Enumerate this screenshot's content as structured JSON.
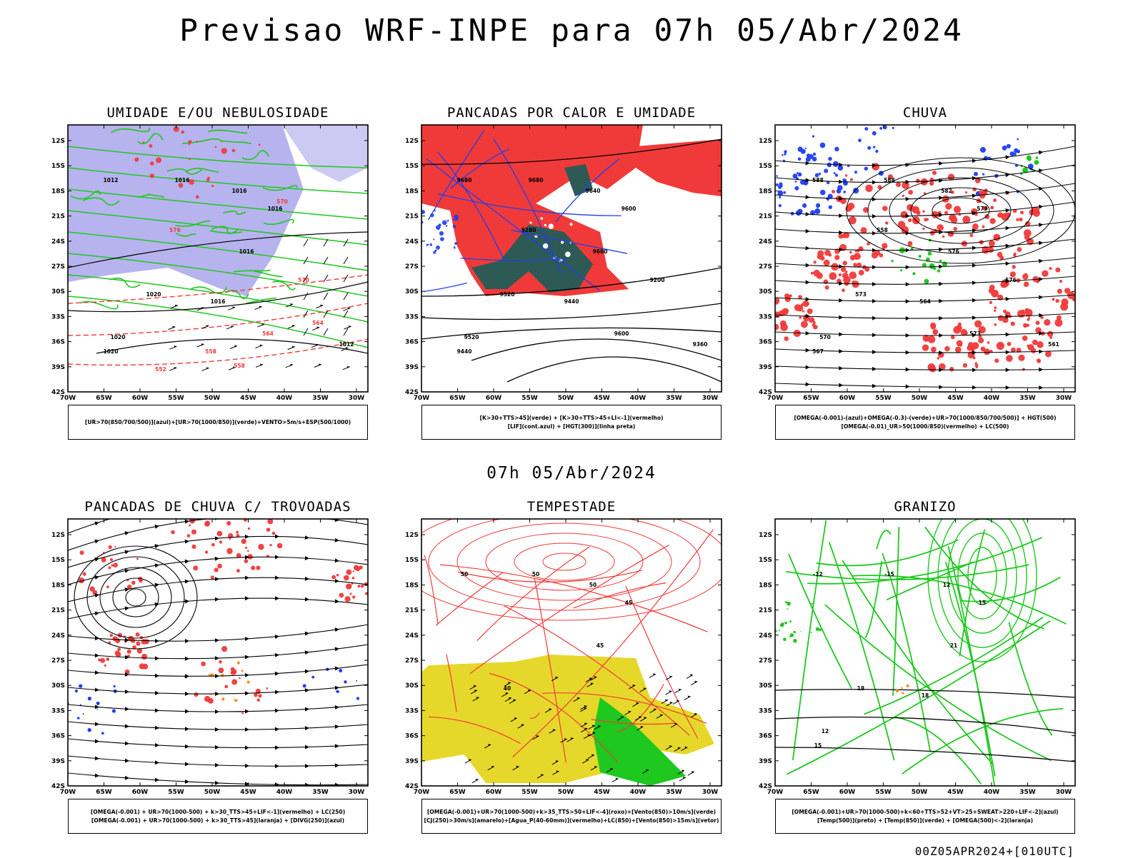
{
  "title": "Previsao WRF-INPE  para 07h 05/Abr/2024",
  "mid_title": "07h 05/Abr/2024",
  "footer": "00Z05APR2024+[010UTC]",
  "axes": {
    "lat_labels": [
      "12S",
      "15S",
      "18S",
      "21S",
      "24S",
      "27S",
      "30S",
      "33S",
      "36S",
      "39S",
      "42S"
    ],
    "lon_labels": [
      "70W",
      "65W",
      "60W",
      "55W",
      "50W",
      "45W",
      "40W",
      "35W",
      "30W"
    ]
  },
  "colors": {
    "red": "#f03a3a",
    "green": "#1ec81e",
    "blue": "#1e3ef0",
    "lavender": "#b7b3ee",
    "darkteal": "#2e5a55",
    "yellow": "#e6d82a",
    "orange": "#ff8c1a",
    "black": "#000000"
  },
  "panels": [
    {
      "id": "umidade",
      "title": "UMIDADE E/OU NEBULOSIDADE",
      "legend": [
        "[UR>70(850/700/500)](azul)+[UR>70(1000/850)](verde)+VENTO>5m/s+ESP(500/1000)"
      ],
      "contour_labels": [
        "1012",
        "1016",
        "1016",
        "1016",
        "1016",
        "1020",
        "1020",
        "1020",
        "1016",
        "1012",
        "576",
        "570",
        "564",
        "558",
        "552",
        "570",
        "564",
        "558"
      ]
    },
    {
      "id": "pancadas-calor",
      "title": "PANCADAS POR CALOR E UMIDADE",
      "legend": [
        "[K>30+TTS>45](verde) + [K>30+TTS>45+LI<-1](vermelho)",
        "[LIF](cont.azul) + [HGT(300)](linha preta)"
      ],
      "contour_labels": [
        "9680",
        "9680",
        "9640",
        "9600",
        "9600",
        "9520",
        "9520",
        "9440",
        "9440",
        "9360",
        "9280",
        "9200",
        "9600"
      ]
    },
    {
      "id": "chuva",
      "title": "CHUVA",
      "legend": [
        "[OMEGA(-0.001)-(azul)+OMEGA(-0.3)-(verde)+UR>70(1000/850/700/500)] + HGT(500)",
        "[OMEGA(-0.01)_UR>50(1000/850)(vermelho) + LC(500)"
      ],
      "contour_labels": [
        "588",
        "588",
        "582",
        "579",
        "576",
        "573",
        "570",
        "567",
        "564",
        "561",
        "558",
        "576",
        "573"
      ]
    },
    {
      "id": "pancadas-trovoadas",
      "title": "PANCADAS DE CHUVA C/ TROVOADAS",
      "legend": [
        "[OMEGA(-0.001) + UR>70(1000-500) + k>30_TTS>45+LIF<-1](vermelho) + LC(250)",
        "[OMEGA(-0.001) + UR>70(1000-500) + k>30_TTS>45](laranja) + [DIVG(250)](azul)"
      ],
      "contour_labels": []
    },
    {
      "id": "tempestade",
      "title": "TEMPESTADE",
      "legend": [
        "[OMEGA(-0.001)+UR>70(1000-500)+k>35_TTS>50+LIF<-4](roxo)+[Vento(850)>10m/s](verde)",
        "[CJ(250)>30m/s](amarelo)+[Agua_P(40-60mm)](vermelho)+LC(850)+[Vento(850)>15m/s](vetor)"
      ],
      "contour_labels": [
        "50",
        "50",
        "50",
        "45",
        "45",
        "40"
      ]
    },
    {
      "id": "granizo",
      "title": "GRANIZO",
      "legend": [
        "[OMEGA(-0.001)+UR>70(1000-500)+k<60+TTS>52+VT>25+SWEAT>220+LIF<-2](azul)",
        "[Temp(500)](preto) + [Temp(850)](verde) + [OMEGA(500)<-2](laranja)"
      ],
      "contour_labels": [
        "-12",
        "-15",
        "12",
        "15",
        "21",
        "18",
        "12",
        "15",
        "18"
      ]
    }
  ]
}
